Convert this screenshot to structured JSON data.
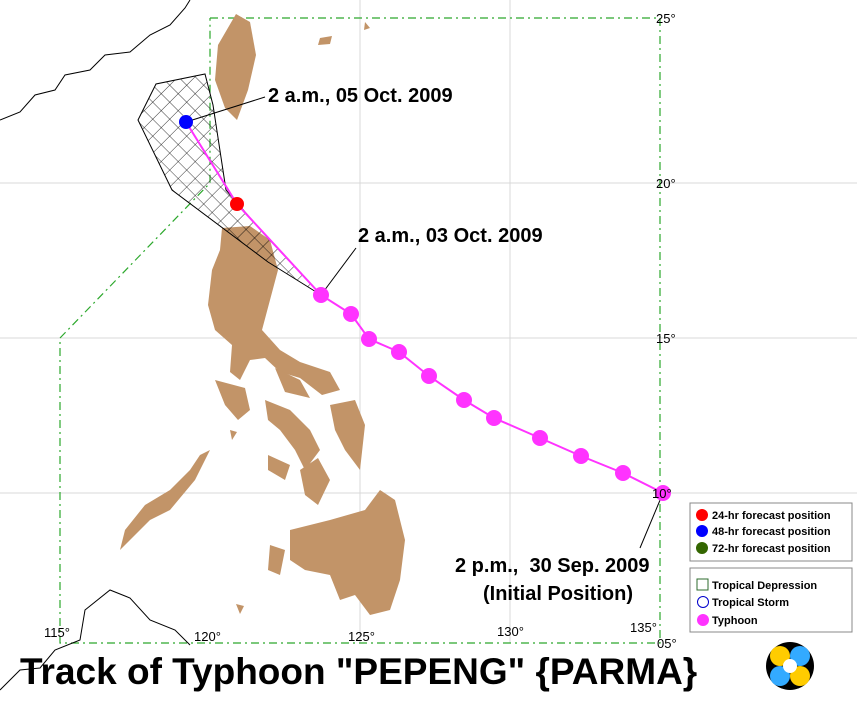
{
  "map": {
    "title": "Track of Typhoon \"PEPENG\" {PARMA}",
    "latitude_labels": [
      "25°",
      "20°",
      "15°",
      "10°",
      "05°"
    ],
    "longitude_labels": [
      "115°",
      "120°",
      "125°",
      "130°",
      "135°"
    ],
    "annotations": [
      "2 a.m., 05 Oct. 2009",
      "2 a.m., 03 Oct. 2009",
      "2 p.m.,  30 Sep. 2009",
      "(Initial Position)"
    ],
    "legend_forecast": [
      "24-hr forecast position",
      "48-hr forecast position",
      "72-hr forecast position"
    ],
    "legend_intensity": [
      "Tropical Depression",
      "Tropical Storm",
      "Typhoon"
    ]
  }
}
